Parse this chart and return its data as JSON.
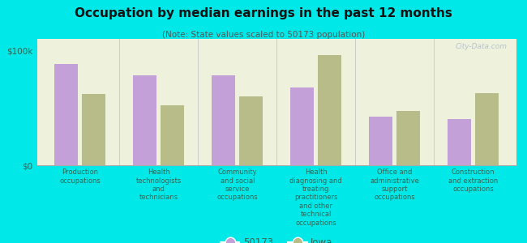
{
  "title": "Occupation by median earnings in the past 12 months",
  "subtitle": "(Note: State values scaled to 50173 population)",
  "background_color": "#00e8e8",
  "plot_bg_color": "#eef2dd",
  "categories": [
    "Production\noccupations",
    "Health\ntechnologists\nand\ntechnicians",
    "Community\nand social\nservice\noccupations",
    "Health\ndiagnosing and\ntreating\npractitioners\nand other\ntechnical\noccupations",
    "Office and\nadministrative\nsupport\noccupations",
    "Construction\nand extraction\noccupations"
  ],
  "values_50173": [
    88000,
    78000,
    78000,
    68000,
    42000,
    40000
  ],
  "values_iowa": [
    62000,
    52000,
    60000,
    96000,
    47000,
    63000
  ],
  "color_50173": "#c4a0d8",
  "color_iowa": "#b8bc88",
  "ylabel": "",
  "yticks": [
    0,
    100000
  ],
  "ytick_labels": [
    "$0",
    "$100k"
  ],
  "ylim": [
    0,
    110000
  ],
  "legend_labels": [
    "50173",
    "Iowa"
  ],
  "watermark": "City-Data.com"
}
